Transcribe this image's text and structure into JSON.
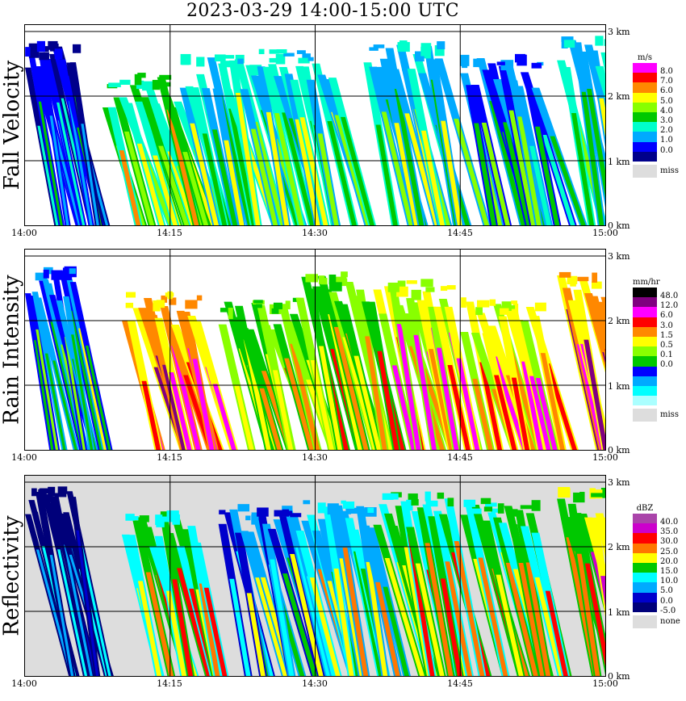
{
  "title": "2023-03-29   14:00-15:00 UTC",
  "chart_data": [
    {
      "type": "heatmap",
      "title": "Fall Velocity",
      "x_ticks": [
        "14:00",
        "14:15",
        "14:30",
        "14:45",
        "15:00"
      ],
      "y_ticks": [
        "0 km",
        "1 km",
        "2 km",
        "3 km"
      ],
      "ylim_km": [
        0,
        3.1
      ],
      "grid": true,
      "colorbar": {
        "unit": "m/s",
        "levels": [
          "8.0",
          "7.0",
          "6.0",
          "5.0",
          "4.0",
          "3.0",
          "2.0",
          "1.0",
          "0.0"
        ],
        "colors": [
          "#ff00ff",
          "#ff0000",
          "#ff8800",
          "#ffff00",
          "#88ff00",
          "#00c800",
          "#00ffcc",
          "#00aaff",
          "#0000ff",
          "#00008b"
        ],
        "missing_label": "miss",
        "missing_color": "#dddddd"
      },
      "echo_cells": [
        {
          "time_min": 0,
          "top_km": 2.8,
          "base_km": 0.0,
          "value": 2.0
        },
        {
          "time_min": 8,
          "top_km": 2.3,
          "base_km": 0.0,
          "value": 5.0
        },
        {
          "time_min": 16,
          "top_km": 2.6,
          "base_km": 0.0,
          "value": 4.5
        },
        {
          "time_min": 24,
          "top_km": 2.7,
          "base_km": 0.0,
          "value": 4.0
        },
        {
          "time_min": 35,
          "top_km": 2.8,
          "base_km": 0.0,
          "value": 4.5
        },
        {
          "time_min": 45,
          "top_km": 2.6,
          "base_km": 0.0,
          "value": 3.5
        },
        {
          "time_min": 55,
          "top_km": 2.9,
          "base_km": 0.0,
          "value": 4.5
        }
      ]
    },
    {
      "type": "heatmap",
      "title": "Rain Intensity",
      "x_ticks": [
        "14:00",
        "14:15",
        "14:30",
        "14:45",
        "15:00"
      ],
      "y_ticks": [
        "0 km",
        "1 km",
        "2 km",
        "3 km"
      ],
      "ylim_km": [
        0,
        3.1
      ],
      "grid": true,
      "colorbar": {
        "unit": "mm/hr",
        "levels": [
          "48.0",
          "12.0",
          "6.0",
          "3.0",
          "1.5",
          "0.5",
          "0.1",
          "0.0"
        ],
        "colors": [
          "#000000",
          "#800080",
          "#ff00ff",
          "#ff0000",
          "#ff8800",
          "#ffff00",
          "#88ff00",
          "#00c800",
          "#0000ff",
          "#00aaff",
          "#00ffff",
          "#aaffff"
        ],
        "missing_label": "miss",
        "missing_color": "#dddddd"
      },
      "echo_cells": [
        {
          "time_min": 0,
          "top_km": 2.8,
          "base_km": 0.0,
          "value": 0.3
        },
        {
          "time_min": 10,
          "top_km": 2.4,
          "base_km": 0.0,
          "value": 6.0
        },
        {
          "time_min": 20,
          "top_km": 2.3,
          "base_km": 0.0,
          "value": 1.5
        },
        {
          "time_min": 28,
          "top_km": 2.7,
          "base_km": 0.0,
          "value": 2.0
        },
        {
          "time_min": 36,
          "top_km": 2.6,
          "base_km": 0.0,
          "value": 5.0
        },
        {
          "time_min": 45,
          "top_km": 2.3,
          "base_km": 0.0,
          "value": 3.0
        },
        {
          "time_min": 55,
          "top_km": 2.7,
          "base_km": 0.0,
          "value": 10.0
        }
      ]
    },
    {
      "type": "heatmap",
      "title": "Reflectivity",
      "x_ticks": [
        "14:00",
        "14:15",
        "14:30",
        "14:45",
        "15:00"
      ],
      "y_ticks": [
        "0 km",
        "1 km",
        "2 km",
        "3 km"
      ],
      "ylim_km": [
        0,
        3.1
      ],
      "grid": true,
      "colorbar": {
        "unit": "dBZ",
        "levels": [
          "40.0",
          "35.0",
          "30.0",
          "25.0",
          "20.0",
          "15.0",
          "10.0",
          "5.0",
          "0.0",
          "-5.0"
        ],
        "colors": [
          "#aa44aa",
          "#cc00cc",
          "#ff0000",
          "#ff7700",
          "#ffff00",
          "#00c800",
          "#00ffff",
          "#00aaff",
          "#0000cc",
          "#00007a"
        ],
        "missing_label": "none",
        "missing_color": "#dddddd"
      },
      "echo_cells": [
        {
          "time_min": 0,
          "top_km": 2.9,
          "base_km": 0.0,
          "value": 8.0
        },
        {
          "time_min": 10,
          "top_km": 2.5,
          "base_km": 0.0,
          "value": 28.0
        },
        {
          "time_min": 20,
          "top_km": 2.6,
          "base_km": 0.0,
          "value": 18.0
        },
        {
          "time_min": 28,
          "top_km": 2.7,
          "base_km": 0.0,
          "value": 20.0
        },
        {
          "time_min": 36,
          "top_km": 2.8,
          "base_km": 0.0,
          "value": 27.0
        },
        {
          "time_min": 45,
          "top_km": 2.7,
          "base_km": 0.0,
          "value": 25.0
        },
        {
          "time_min": 55,
          "top_km": 2.9,
          "base_km": 0.0,
          "value": 30.0
        }
      ]
    }
  ]
}
